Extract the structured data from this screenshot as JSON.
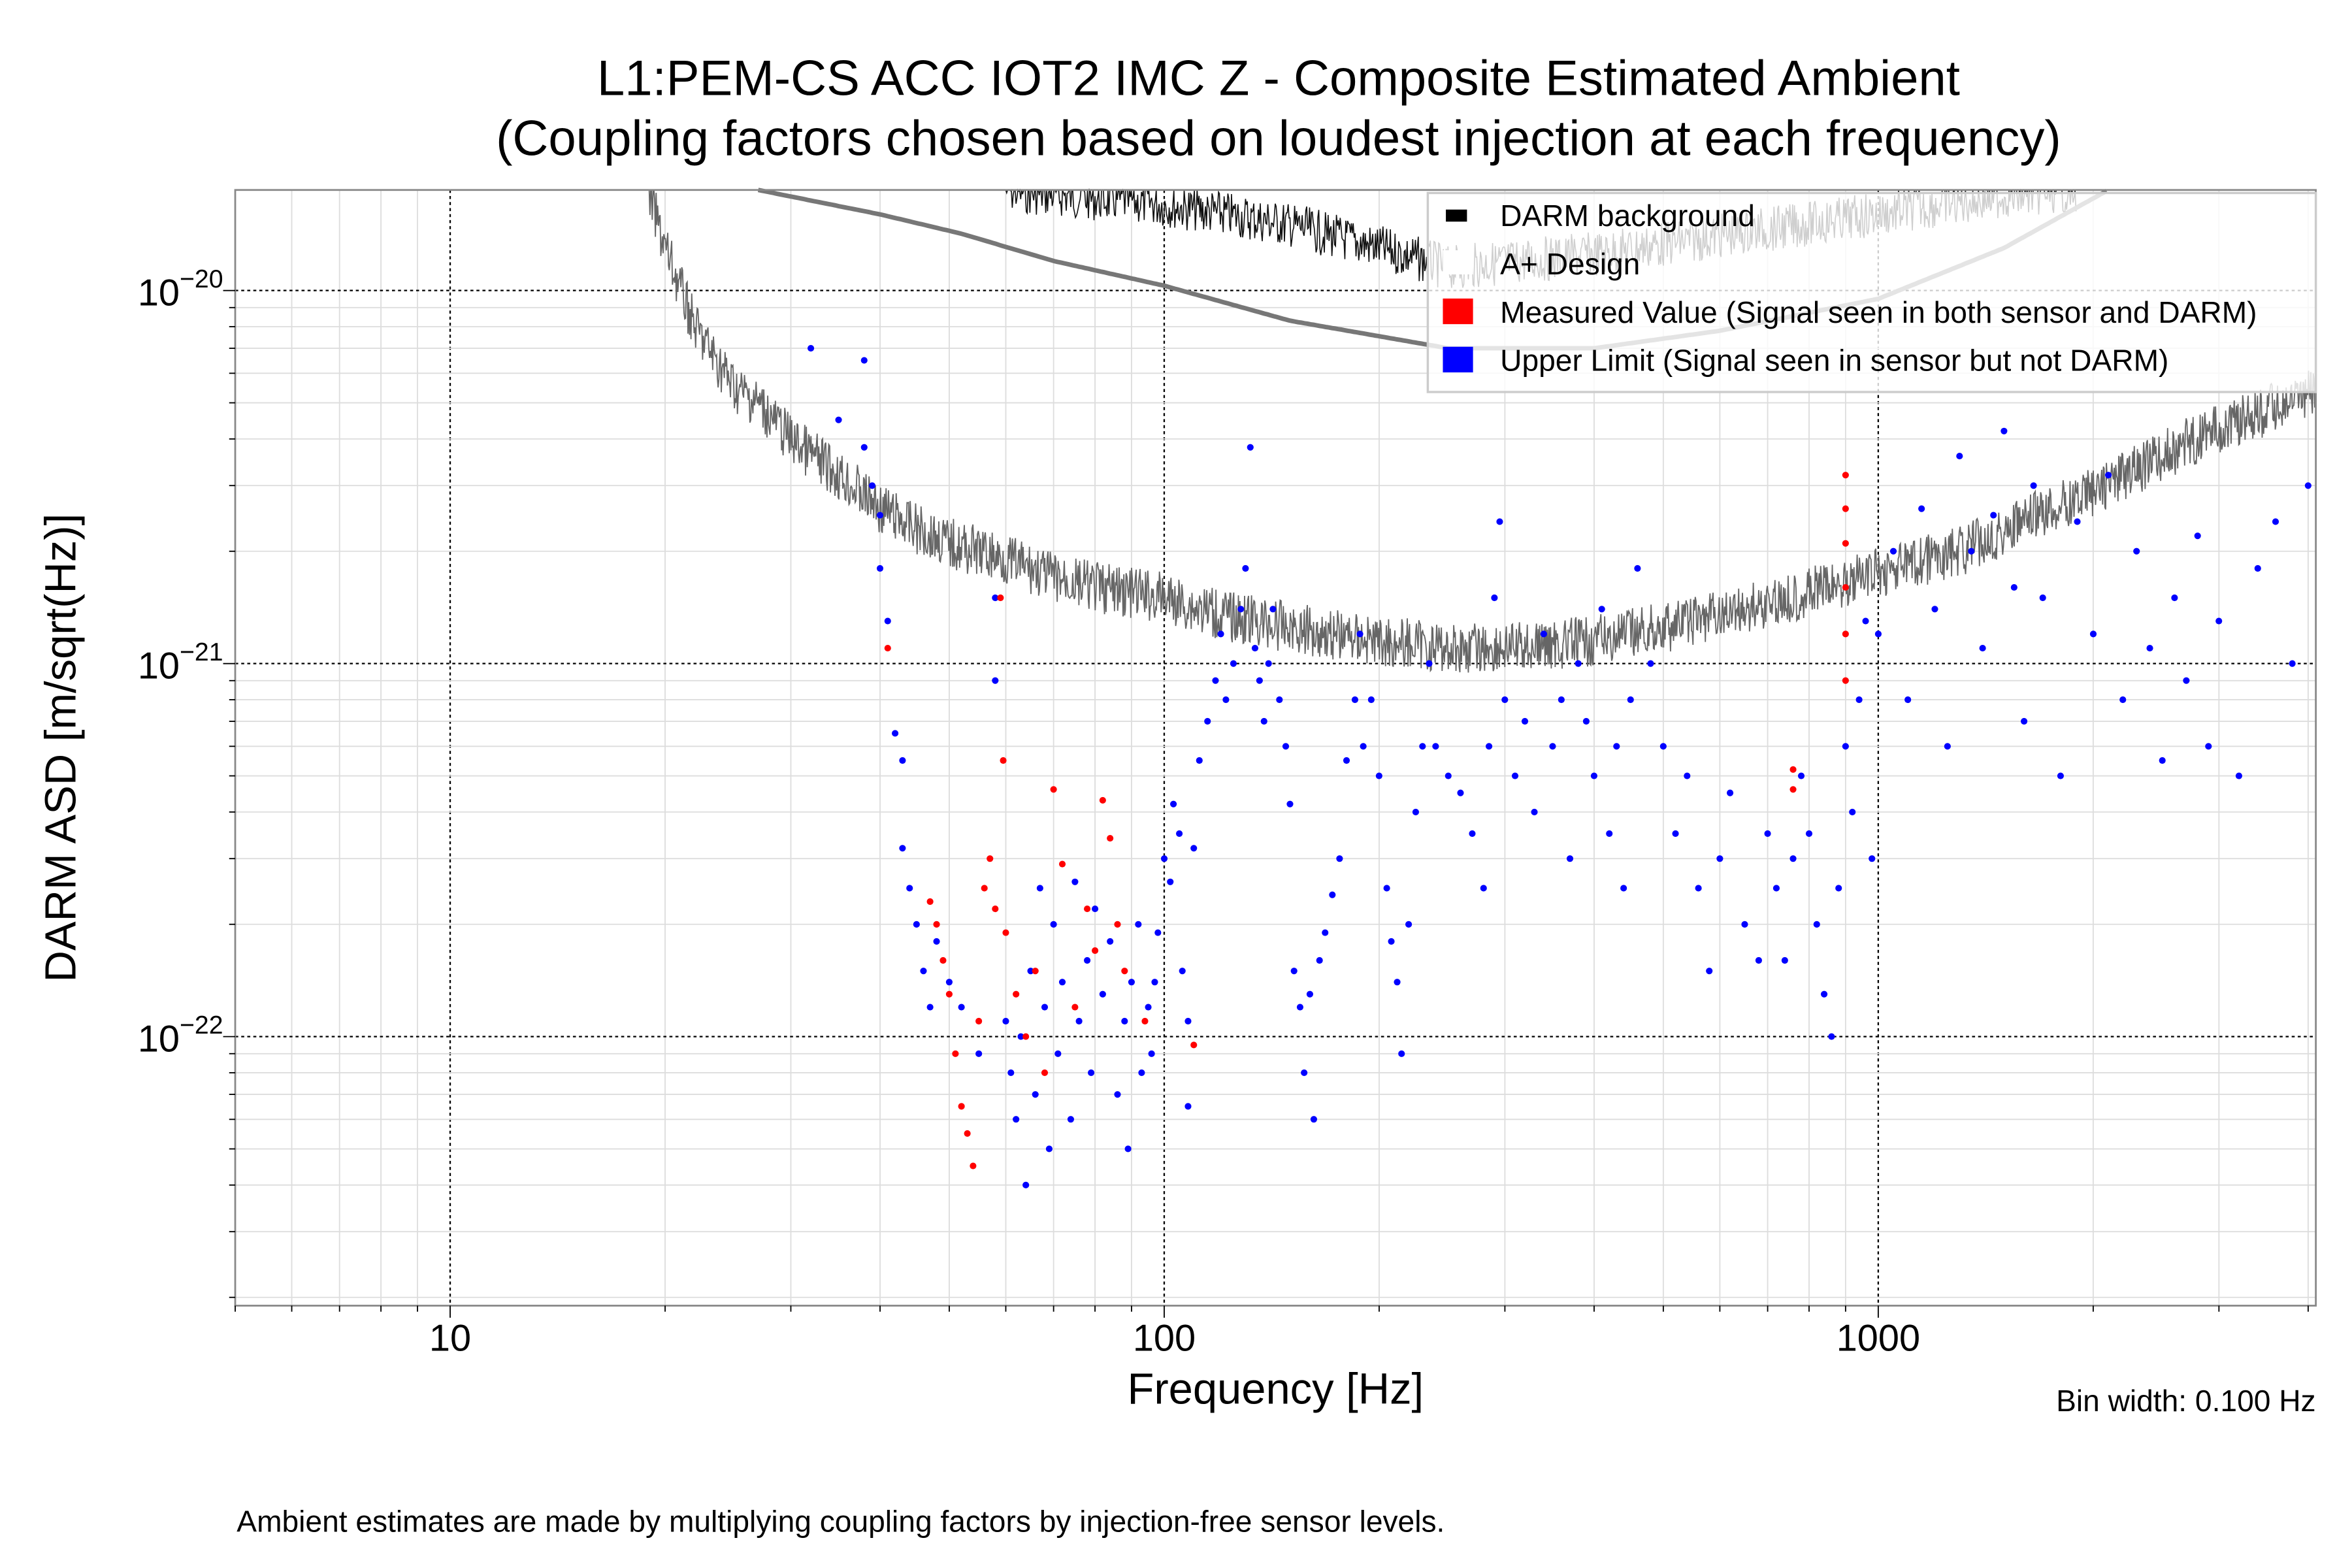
{
  "chart_data": {
    "type": "scatter",
    "title_line1": "L1:PEM-CS ACC IOT2 IMC Z - Composite Estimated Ambient",
    "title_line2": "(Coupling factors chosen based on loudest injection at each frequency)",
    "xlabel": "Frequency [Hz]",
    "ylabel": "DARM ASD [m/sqrt(Hz)]",
    "xscale": "log",
    "yscale": "log",
    "xlim": [
      5,
      4100
    ],
    "ylim": [
      1.9e-23,
      1.86e-20
    ],
    "grid": true,
    "legend_position": "top-right",
    "x_ticks": [
      {
        "value": 10,
        "label": "10"
      },
      {
        "value": 100,
        "label": "100"
      },
      {
        "value": 1000,
        "label": "1000"
      }
    ],
    "y_ticks": [
      {
        "value": 1e-20,
        "base": "10",
        "exp": "−20"
      },
      {
        "value": 1e-21,
        "base": "10",
        "exp": "−21"
      },
      {
        "value": 1e-22,
        "base": "10",
        "exp": "−22"
      }
    ],
    "annotation_bin_width": "Bin width: 0.100 Hz",
    "footnote": "Ambient estimates are made by multiplying coupling factors by injection-free sensor levels.",
    "legend": [
      {
        "label": "DARM background",
        "color": "#000000"
      },
      {
        "label": "A+ Design",
        "color": "#ffffff"
      },
      {
        "label": "Measured Value (Signal seen in both sensor and DARM)",
        "color": "#ff0000"
      },
      {
        "label": "Upper Limit (Signal seen in sensor but not DARM)",
        "color": "#0000ff"
      }
    ],
    "series": [
      {
        "name": "DARM background",
        "kind": "line",
        "color": "#666666",
        "points": [
          [
            19,
            1.8e-20
          ],
          [
            20,
            1.3e-20
          ],
          [
            22,
            8e-21
          ],
          [
            25,
            5.5e-21
          ],
          [
            27,
            5e-21
          ],
          [
            30,
            4e-21
          ],
          [
            35,
            3.2e-21
          ],
          [
            40,
            2.6e-21
          ],
          [
            45,
            2.3e-21
          ],
          [
            50,
            2.1e-21
          ],
          [
            60,
            1.9e-21
          ],
          [
            70,
            1.7e-21
          ],
          [
            80,
            1.6e-21
          ],
          [
            100,
            1.5e-21
          ],
          [
            120,
            1.35e-21
          ],
          [
            150,
            1.25e-21
          ],
          [
            200,
            1.15e-21
          ],
          [
            250,
            1.1e-21
          ],
          [
            300,
            1.1e-21
          ],
          [
            400,
            1.15e-21
          ],
          [
            500,
            1.25e-21
          ],
          [
            600,
            1.35e-21
          ],
          [
            700,
            1.45e-21
          ],
          [
            800,
            1.55e-21
          ],
          [
            1000,
            1.75e-21
          ],
          [
            1300,
            2e-21
          ],
          [
            1600,
            2.4e-21
          ],
          [
            2000,
            2.9e-21
          ],
          [
            2500,
            3.6e-21
          ],
          [
            3000,
            4.3e-21
          ],
          [
            4100,
            5.3e-21
          ]
        ],
        "upper_band": [
          [
            60,
            1.86e-20
          ],
          [
            100,
            1.7e-20
          ],
          [
            150,
            1.5e-20
          ],
          [
            200,
            1.3e-20
          ],
          [
            250,
            1.15e-20
          ],
          [
            400,
            1.25e-20
          ],
          [
            600,
            1.4e-20
          ],
          [
            1000,
            1.6e-20
          ],
          [
            1500,
            1.8e-20
          ],
          [
            1900,
            1.86e-20
          ]
        ]
      },
      {
        "name": "A+ Design",
        "kind": "line",
        "color": "#777777",
        "points": [
          [
            27,
            1.86e-20
          ],
          [
            40,
            1.6e-20
          ],
          [
            52,
            1.42e-20
          ],
          [
            70,
            1.2e-20
          ],
          [
            100,
            1.03e-20
          ],
          [
            150,
            8.3e-21
          ],
          [
            250,
            7e-21
          ],
          [
            400,
            7e-21
          ],
          [
            600,
            7.8e-21
          ],
          [
            1000,
            9.5e-21
          ],
          [
            1500,
            1.3e-20
          ],
          [
            2100,
            1.86e-20
          ]
        ]
      },
      {
        "name": "Measured Value (Signal seen in both sensor and DARM)",
        "kind": "scatter",
        "color": "#ff0000",
        "points": [
          [
            41,
            1.1e-21
          ],
          [
            47,
            2.3e-22
          ],
          [
            48,
            2e-22
          ],
          [
            49,
            1.6e-22
          ],
          [
            50,
            1.3e-22
          ],
          [
            51,
            9e-23
          ],
          [
            52,
            6.5e-23
          ],
          [
            53,
            5.5e-23
          ],
          [
            54,
            4.5e-23
          ],
          [
            55,
            1.1e-22
          ],
          [
            56,
            2.5e-22
          ],
          [
            57,
            3e-22
          ],
          [
            58,
            2.2e-22
          ],
          [
            59,
            1.5e-21
          ],
          [
            59.5,
            5.5e-22
          ],
          [
            60,
            1.9e-22
          ],
          [
            62,
            1.3e-22
          ],
          [
            64,
            1e-22
          ],
          [
            66,
            1.5e-22
          ],
          [
            68,
            8e-23
          ],
          [
            70,
            4.6e-22
          ],
          [
            72,
            2.9e-22
          ],
          [
            75,
            1.2e-22
          ],
          [
            78,
            2.2e-22
          ],
          [
            80,
            1.7e-22
          ],
          [
            82,
            4.3e-22
          ],
          [
            84,
            3.4e-22
          ],
          [
            86,
            2e-22
          ],
          [
            88,
            1.5e-22
          ],
          [
            94,
            1.1e-22
          ],
          [
            110,
            9.5e-23
          ],
          [
            760,
            5.2e-22
          ],
          [
            760,
            4.6e-22
          ],
          [
            900,
            3.2e-21
          ],
          [
            900,
            2.6e-21
          ],
          [
            900,
            2.1e-21
          ],
          [
            900,
            1.6e-21
          ],
          [
            900,
            1.2e-21
          ],
          [
            900,
            9e-22
          ]
        ]
      },
      {
        "name": "Upper Limit (Signal seen in sensor but not DARM)",
        "kind": "scatter",
        "color": "#0000ff",
        "points": [
          [
            32,
            7e-21
          ],
          [
            35,
            4.5e-21
          ],
          [
            38,
            6.5e-21
          ],
          [
            38,
            3.8e-21
          ],
          [
            39,
            3e-21
          ],
          [
            40,
            2.5e-21
          ],
          [
            40,
            1.8e-21
          ],
          [
            41,
            1.3e-21
          ],
          [
            42,
            6.5e-22
          ],
          [
            43,
            5.5e-22
          ],
          [
            43,
            3.2e-22
          ],
          [
            44,
            2.5e-22
          ],
          [
            45,
            2e-22
          ],
          [
            46,
            1.5e-22
          ],
          [
            47,
            1.2e-22
          ],
          [
            48,
            1.8e-22
          ],
          [
            50,
            1.4e-22
          ],
          [
            52,
            1.2e-22
          ],
          [
            55,
            9e-23
          ],
          [
            58,
            1.5e-21
          ],
          [
            58,
            9e-22
          ],
          [
            60,
            1.1e-22
          ],
          [
            61,
            8e-23
          ],
          [
            62,
            6e-23
          ],
          [
            63,
            1e-22
          ],
          [
            64,
            4e-23
          ],
          [
            65,
            1.5e-22
          ],
          [
            66,
            7e-23
          ],
          [
            67,
            2.5e-22
          ],
          [
            68,
            1.2e-22
          ],
          [
            69,
            5e-23
          ],
          [
            70,
            2e-22
          ],
          [
            71,
            9e-23
          ],
          [
            72,
            1.4e-22
          ],
          [
            74,
            6e-23
          ],
          [
            75,
            2.6e-22
          ],
          [
            76,
            1.1e-22
          ],
          [
            78,
            1.6e-22
          ],
          [
            79,
            8e-23
          ],
          [
            80,
            2.2e-22
          ],
          [
            82,
            1.3e-22
          ],
          [
            84,
            1.8e-22
          ],
          [
            86,
            7e-23
          ],
          [
            88,
            1.1e-22
          ],
          [
            89,
            5e-23
          ],
          [
            90,
            1.4e-22
          ],
          [
            92,
            2e-22
          ],
          [
            93,
            8e-23
          ],
          [
            95,
            1.2e-22
          ],
          [
            96,
            9e-23
          ],
          [
            97,
            1.4e-22
          ],
          [
            98,
            1.9e-22
          ],
          [
            100,
            3e-22
          ],
          [
            102,
            2.6e-22
          ],
          [
            103,
            4.2e-22
          ],
          [
            105,
            3.5e-22
          ],
          [
            106,
            1.5e-22
          ],
          [
            108,
            1.1e-22
          ],
          [
            108,
            6.5e-23
          ],
          [
            110,
            3.2e-22
          ],
          [
            112,
            5.5e-22
          ],
          [
            115,
            7e-22
          ],
          [
            118,
            9e-22
          ],
          [
            120,
            1.2e-21
          ],
          [
            122,
            8e-22
          ],
          [
            125,
            1e-21
          ],
          [
            128,
            1.4e-21
          ],
          [
            130,
            1.8e-21
          ],
          [
            132,
            3.8e-21
          ],
          [
            134,
            1.1e-21
          ],
          [
            136,
            9e-22
          ],
          [
            138,
            7e-22
          ],
          [
            140,
            1e-21
          ],
          [
            142,
            1.4e-21
          ],
          [
            145,
            8e-22
          ],
          [
            148,
            6e-22
          ],
          [
            150,
            4.2e-22
          ],
          [
            152,
            1.5e-22
          ],
          [
            155,
            1.2e-22
          ],
          [
            157,
            8e-23
          ],
          [
            160,
            1.3e-22
          ],
          [
            162,
            6e-23
          ],
          [
            165,
            1.6e-22
          ],
          [
            168,
            1.9e-22
          ],
          [
            172,
            2.4e-22
          ],
          [
            176,
            3e-22
          ],
          [
            180,
            5.5e-22
          ],
          [
            185,
            8e-22
          ],
          [
            188,
            1.2e-21
          ],
          [
            190,
            6e-22
          ],
          [
            195,
            8e-22
          ],
          [
            200,
            5e-22
          ],
          [
            205,
            2.5e-22
          ],
          [
            208,
            1.8e-22
          ],
          [
            212,
            1.4e-22
          ],
          [
            215,
            9e-23
          ],
          [
            220,
            2e-22
          ],
          [
            225,
            4e-22
          ],
          [
            230,
            6e-22
          ],
          [
            235,
            1e-21
          ],
          [
            240,
            6e-22
          ],
          [
            250,
            5e-22
          ],
          [
            260,
            4.5e-22
          ],
          [
            270,
            3.5e-22
          ],
          [
            280,
            2.5e-22
          ],
          [
            285,
            6e-22
          ],
          [
            290,
            1.5e-21
          ],
          [
            295,
            2.4e-21
          ],
          [
            300,
            8e-22
          ],
          [
            310,
            5e-22
          ],
          [
            320,
            7e-22
          ],
          [
            330,
            4e-22
          ],
          [
            340,
            1.2e-21
          ],
          [
            350,
            6e-22
          ],
          [
            360,
            8e-22
          ],
          [
            370,
            3e-22
          ],
          [
            380,
            1e-21
          ],
          [
            390,
            7e-22
          ],
          [
            400,
            5e-22
          ],
          [
            410,
            1.4e-21
          ],
          [
            420,
            3.5e-22
          ],
          [
            430,
            6e-22
          ],
          [
            440,
            2.5e-22
          ],
          [
            450,
            8e-22
          ],
          [
            460,
            1.8e-21
          ],
          [
            480,
            1e-21
          ],
          [
            500,
            6e-22
          ],
          [
            520,
            3.5e-22
          ],
          [
            540,
            5e-22
          ],
          [
            560,
            2.5e-22
          ],
          [
            580,
            1.5e-22
          ],
          [
            600,
            3e-22
          ],
          [
            620,
            4.5e-22
          ],
          [
            650,
            2e-22
          ],
          [
            680,
            1.6e-22
          ],
          [
            700,
            3.5e-22
          ],
          [
            720,
            2.5e-22
          ],
          [
            740,
            1.6e-22
          ],
          [
            760,
            3e-22
          ],
          [
            780,
            5e-22
          ],
          [
            800,
            3.5e-22
          ],
          [
            820,
            2e-22
          ],
          [
            840,
            1.3e-22
          ],
          [
            860,
            1e-22
          ],
          [
            880,
            2.5e-22
          ],
          [
            900,
            6e-22
          ],
          [
            920,
            4e-22
          ],
          [
            940,
            8e-22
          ],
          [
            960,
            1.3e-21
          ],
          [
            980,
            3e-22
          ],
          [
            1000,
            1.2e-21
          ],
          [
            1050,
            2e-21
          ],
          [
            1100,
            8e-22
          ],
          [
            1150,
            2.6e-21
          ],
          [
            1200,
            1.4e-21
          ],
          [
            1250,
            6e-22
          ],
          [
            1300,
            3.6e-21
          ],
          [
            1350,
            2e-21
          ],
          [
            1400,
            1.1e-21
          ],
          [
            1450,
            2.5e-21
          ],
          [
            1500,
            4.2e-21
          ],
          [
            1550,
            1.6e-21
          ],
          [
            1600,
            7e-22
          ],
          [
            1650,
            3e-21
          ],
          [
            1700,
            1.5e-21
          ],
          [
            1800,
            5e-22
          ],
          [
            1900,
            2.4e-21
          ],
          [
            2000,
            1.2e-21
          ],
          [
            2100,
            3.2e-21
          ],
          [
            2200,
            8e-22
          ],
          [
            2300,
            2e-21
          ],
          [
            2400,
            1.1e-21
          ],
          [
            2500,
            5.5e-22
          ],
          [
            2600,
            1.5e-21
          ],
          [
            2700,
            9e-22
          ],
          [
            2800,
            2.2e-21
          ],
          [
            2900,
            6e-22
          ],
          [
            3000,
            1.3e-21
          ],
          [
            3200,
            5e-22
          ],
          [
            3400,
            1.8e-21
          ],
          [
            3600,
            2.4e-21
          ],
          [
            3800,
            1e-21
          ],
          [
            4000,
            3e-21
          ]
        ]
      }
    ]
  }
}
